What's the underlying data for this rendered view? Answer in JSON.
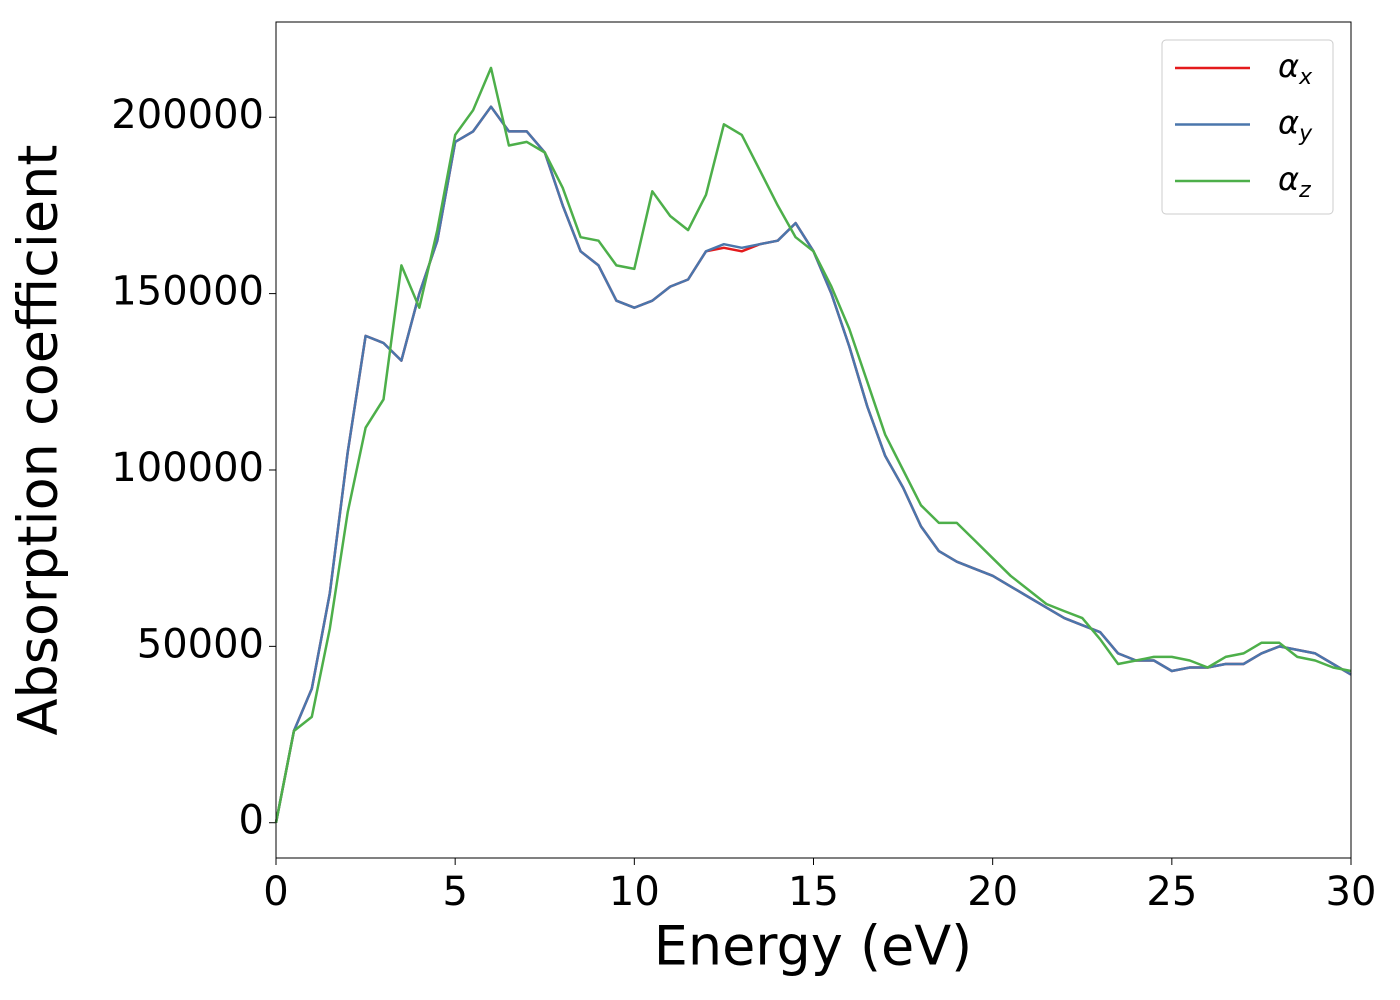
{
  "chart_data": {
    "type": "line",
    "xlabel": "Energy (eV)",
    "ylabel": "Absorption coefficient",
    "x": [
      0,
      0.5,
      1,
      1.5,
      2,
      2.5,
      3,
      3.5,
      4,
      4.5,
      5,
      5.5,
      6,
      6.5,
      7,
      7.5,
      8,
      8.5,
      9,
      9.5,
      10,
      10.5,
      11,
      11.5,
      12,
      12.5,
      13,
      13.5,
      14,
      14.5,
      15,
      15.5,
      16,
      16.5,
      17,
      17.5,
      18,
      18.5,
      19,
      19.5,
      20,
      20.5,
      21,
      21.5,
      22,
      22.5,
      23,
      23.5,
      24,
      24.5,
      25,
      25.5,
      26,
      26.5,
      27,
      27.5,
      28,
      28.5,
      29,
      29.5,
      30
    ],
    "series": [
      {
        "name": "αx",
        "color": "#e41a1c",
        "values": [
          0,
          26000,
          38000,
          65000,
          105000,
          138000,
          136000,
          131000,
          150000,
          165000,
          193000,
          196000,
          203000,
          196000,
          196000,
          190000,
          175000,
          162000,
          158000,
          148000,
          146000,
          148000,
          152000,
          154000,
          162000,
          163000,
          162000,
          164000,
          165000,
          170000,
          162000,
          150000,
          135000,
          118000,
          104000,
          95000,
          84000,
          77000,
          74000,
          72000,
          70000,
          67000,
          64000,
          61000,
          58000,
          56000,
          54000,
          48000,
          46000,
          46000,
          43000,
          44000,
          44000,
          45000,
          45000,
          48000,
          50000,
          49000,
          48000,
          45000,
          42000
        ]
      },
      {
        "name": "αy",
        "color": "#4a76ac",
        "values": [
          0,
          26000,
          38000,
          65000,
          105000,
          138000,
          136000,
          131000,
          150000,
          165000,
          193000,
          196000,
          203000,
          196000,
          196000,
          190000,
          175000,
          162000,
          158000,
          148000,
          146000,
          148000,
          152000,
          154000,
          162000,
          164000,
          163000,
          164000,
          165000,
          170000,
          162000,
          150000,
          135000,
          118000,
          104000,
          95000,
          84000,
          77000,
          74000,
          72000,
          70000,
          67000,
          64000,
          61000,
          58000,
          56000,
          54000,
          48000,
          46000,
          46000,
          43000,
          44000,
          44000,
          45000,
          45000,
          48000,
          50000,
          49000,
          48000,
          45000,
          42000
        ]
      },
      {
        "name": "αz",
        "color": "#4daf4a",
        "values": [
          0,
          26000,
          30000,
          55000,
          88000,
          112000,
          120000,
          158000,
          146000,
          168000,
          195000,
          202000,
          214000,
          192000,
          193000,
          190000,
          180000,
          166000,
          165000,
          158000,
          157000,
          179000,
          172000,
          168000,
          178000,
          198000,
          195000,
          185000,
          175000,
          166000,
          162000,
          152000,
          140000,
          125000,
          110000,
          100000,
          90000,
          85000,
          85000,
          80000,
          75000,
          70000,
          66000,
          62000,
          60000,
          58000,
          52000,
          45000,
          46000,
          47000,
          47000,
          46000,
          44000,
          47000,
          48000,
          51000,
          51000,
          47000,
          46000,
          44000,
          43000
        ]
      }
    ],
    "xlim": [
      0,
      30
    ],
    "xticks": [
      0,
      5,
      10,
      15,
      20,
      25,
      30
    ],
    "ylim": [
      -10000,
      227000
    ],
    "yticks": [
      0,
      50000,
      100000,
      150000,
      200000
    ],
    "legend": "upper right"
  }
}
